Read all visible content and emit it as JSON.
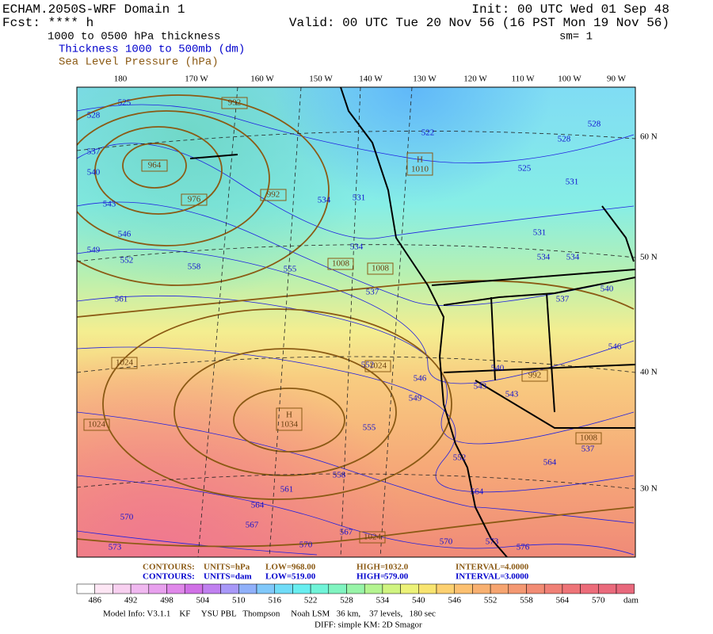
{
  "header": {
    "model": "ECHAM.2050S-WRF Domain 1",
    "forecast": "Fcst: **** h",
    "field": "1000 to 0500 hPa thickness",
    "thickness_legend": "Thickness 1000 to 500mb (dm)",
    "pressure_legend": "Sea Level Pressure (hPa)",
    "init": "Init: 00 UTC Wed 01 Sep 48",
    "valid": "Valid: 00 UTC Tue 20 Nov 56 (16 PST Mon 19 Nov 56)",
    "smoothing": "sm= 1"
  },
  "longitude_labels": [
    "180",
    "170 W",
    "160 W",
    "150 W",
    "140 W",
    "130 W",
    "120 W",
    "110 W",
    "100 W",
    "90 W"
  ],
  "latitude_labels": [
    "60 N",
    "50 N",
    "40 N",
    "30 N"
  ],
  "thickness_labels": [
    "525",
    "528",
    "537",
    "540",
    "543",
    "546",
    "549",
    "552",
    "558",
    "561",
    "534",
    "531",
    "522",
    "528",
    "528",
    "525",
    "531",
    "531",
    "534",
    "534",
    "534",
    "555",
    "537",
    "537",
    "540",
    "546",
    "552",
    "546",
    "549",
    "540",
    "543",
    "543",
    "555",
    "552",
    "558",
    "561",
    "564",
    "567",
    "567",
    "570",
    "573",
    "570",
    "570",
    "573",
    "576",
    "564",
    "564",
    "537"
  ],
  "pressure_labels": [
    "992",
    "964",
    "976",
    "992",
    "1010",
    "1008",
    "1008",
    "1024",
    "1024",
    "1034",
    "1024",
    "1008",
    "1024",
    "992"
  ],
  "high_marker": "H",
  "footer": {
    "pressure_contours": [
      "CONTOURS:",
      "UNITS=hPa",
      "LOW=",
      "968.00",
      "HIGH=",
      "1032.0",
      "INTERVAL=",
      "4.0000"
    ],
    "thickness_contours": [
      "CONTOURS:",
      "UNITS=dam",
      "LOW=",
      "519.00",
      "HIGH=",
      "579.00",
      "INTERVAL=",
      "3.0000"
    ],
    "colorbar_labels": [
      "486",
      "492",
      "498",
      "504",
      "510",
      "516",
      "522",
      "528",
      "534",
      "540",
      "546",
      "552",
      "558",
      "564",
      "570"
    ],
    "colorbar_unit": "dam",
    "model_info": "Model Info: V3.1.1    KF     YSU PBL   Thompson     Noah LSM   36 km,    37 levels,   180 sec",
    "diff_info": "DIFF: simple KM: 2D Smagor"
  }
}
